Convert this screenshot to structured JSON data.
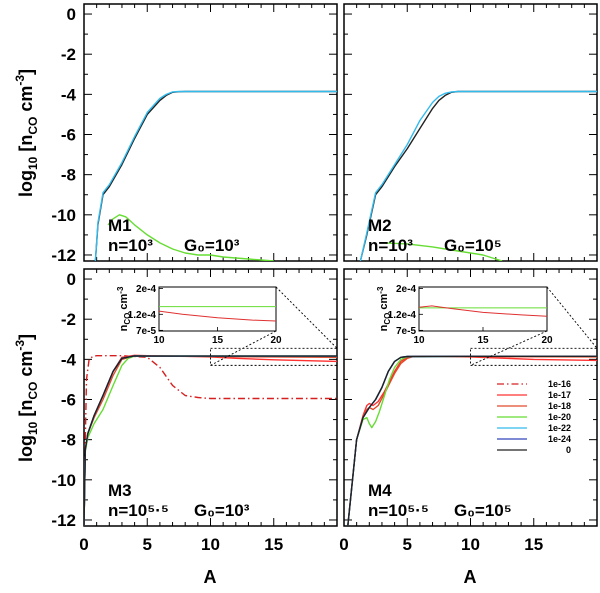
{
  "chart_data": {
    "type": "line",
    "xlabel": "A",
    "ylabel": "log10 [nCO cm-3]",
    "xlim": [
      0,
      20
    ],
    "ylim": [
      -12.3,
      0.5
    ],
    "x_ticks": [
      "0",
      "5",
      "10",
      "15"
    ],
    "y_ticks": [
      "0",
      "-2",
      "-4",
      "-6",
      "-8",
      "-10",
      "-12"
    ],
    "legend": {
      "placement": "lower-right of panel M4",
      "entries": [
        {
          "label": "1e-16",
          "color": "#d62020",
          "dash": "dashdot"
        },
        {
          "label": "1e-17",
          "color": "#ff3030",
          "dash": "solid"
        },
        {
          "label": "1e-18",
          "color": "#e04a2a",
          "dash": "solid"
        },
        {
          "label": "1e-20",
          "color": "#66dd33",
          "dash": "solid"
        },
        {
          "label": "1e-22",
          "color": "#33bbee",
          "dash": "solid"
        },
        {
          "label": "1e-24",
          "color": "#3344bb",
          "dash": "solid"
        },
        {
          "label": "0",
          "color": "#222222",
          "dash": "solid"
        }
      ]
    },
    "panels": [
      {
        "id": "M1",
        "model": "M1",
        "density": "n=10³",
        "field": "G₀=10³",
        "series": [
          {
            "name": "0",
            "color": "#222222",
            "dash": "solid",
            "x": [
              0.9,
              1.1,
              1.5,
              2.0,
              3.0,
              4.0,
              5.0,
              6.0,
              6.5,
              7.0,
              7.5,
              8.0,
              10.0,
              20.0
            ],
            "y": [
              -12.3,
              -10.5,
              -9.0,
              -8.6,
              -7.5,
              -6.2,
              -5.0,
              -4.3,
              -4.05,
              -3.9,
              -3.87,
              -3.86,
              -3.86,
              -3.86
            ]
          },
          {
            "name": "1e-22",
            "color": "#33bbee",
            "dash": "solid",
            "x": [
              0.9,
              1.1,
              1.5,
              2.0,
              3.0,
              4.0,
              5.0,
              6.0,
              6.5,
              7.0,
              7.5,
              8.0,
              10.0,
              20.0
            ],
            "y": [
              -12.3,
              -10.4,
              -8.9,
              -8.5,
              -7.4,
              -6.1,
              -4.9,
              -4.2,
              -4.0,
              -3.88,
              -3.86,
              -3.86,
              -3.86,
              -3.86
            ]
          },
          {
            "name": "1e-20",
            "color": "#66dd33",
            "dash": "solid",
            "x": [
              1.9,
              2.3,
              2.8,
              3.3,
              4.0,
              5.0,
              6.0,
              7.0,
              8.0,
              9.0,
              10.0,
              11.0,
              12.0,
              13.0,
              14.0,
              15.0
            ],
            "y": [
              -10.5,
              -10.2,
              -10.0,
              -10.1,
              -10.5,
              -11.0,
              -11.4,
              -11.7,
              -11.9,
              -12.0,
              -12.0,
              -12.1,
              -12.15,
              -12.2,
              -12.25,
              -12.3
            ]
          }
        ]
      },
      {
        "id": "M2",
        "model": "M2",
        "density": "n=10³",
        "field": "G₀=10⁵",
        "series": [
          {
            "name": "0",
            "color": "#222222",
            "dash": "solid",
            "x": [
              1.3,
              1.8,
              2.5,
              3.0,
              4.0,
              5.0,
              6.0,
              7.0,
              7.5,
              8.0,
              8.5,
              9.0,
              10.0,
              20.0
            ],
            "y": [
              -12.3,
              -11.0,
              -9.0,
              -8.6,
              -7.6,
              -6.7,
              -5.7,
              -4.7,
              -4.3,
              -4.05,
              -3.9,
              -3.86,
              -3.86,
              -3.86
            ]
          },
          {
            "name": "1e-22",
            "color": "#33bbee",
            "dash": "solid",
            "x": [
              1.3,
              1.8,
              2.5,
              3.0,
              4.0,
              5.0,
              6.0,
              7.0,
              7.5,
              8.0,
              8.5,
              9.0,
              10.0,
              20.0
            ],
            "y": [
              -12.3,
              -10.9,
              -8.9,
              -8.5,
              -7.5,
              -6.5,
              -5.3,
              -4.4,
              -4.1,
              -3.95,
              -3.88,
              -3.86,
              -3.86,
              -3.86
            ]
          },
          {
            "name": "1e-20",
            "color": "#66dd33",
            "dash": "solid",
            "x": [
              3.2,
              5.0,
              7.0,
              9.0,
              11.0,
              12.5
            ],
            "y": [
              -11.4,
              -11.45,
              -11.6,
              -11.8,
              -12.0,
              -12.3
            ]
          }
        ]
      },
      {
        "id": "M3",
        "model": "M3",
        "density": "n=10⁵·⁵",
        "field": "G₀=10³",
        "inset": {
          "ylabel": "nCO cm-3",
          "y_ticks": [
            "2e-4",
            "1.2e-4",
            "7e-5"
          ],
          "x_ticks": [
            "10",
            "15",
            "20"
          ]
        },
        "series": [
          {
            "name": "1e-16",
            "color": "#d62020",
            "dash": "dashdot",
            "x": [
              0.0,
              0.1,
              0.2,
              0.4,
              0.7,
              1.0,
              3.0,
              5.0,
              6.0,
              7.0,
              8.0,
              9.0,
              10.0,
              20.0
            ],
            "y": [
              -12.3,
              -8.0,
              -5.0,
              -4.0,
              -3.85,
              -3.82,
              -3.82,
              -3.9,
              -4.4,
              -5.3,
              -5.8,
              -5.9,
              -5.95,
              -5.95
            ]
          },
          {
            "name": "1e-17",
            "color": "#ff3030",
            "dash": "solid",
            "x": [
              0.0,
              0.1,
              0.3,
              0.8,
              1.5,
              2.3,
              3.0,
              4.0,
              5.0,
              7.0,
              9.0,
              10.0,
              12.0,
              15.0,
              20.0
            ],
            "y": [
              -12.3,
              -8.5,
              -7.7,
              -6.8,
              -5.8,
              -4.6,
              -3.9,
              -3.8,
              -3.82,
              -3.84,
              -3.86,
              -3.88,
              -3.95,
              -4.02,
              -4.1
            ]
          },
          {
            "name": "1e-18",
            "color": "#e04a2a",
            "dash": "solid",
            "x": [
              0.0,
              0.1,
              0.3,
              0.8,
              1.5,
              2.3,
              3.0,
              4.0,
              5.0,
              10.0,
              20.0
            ],
            "y": [
              -12.3,
              -8.5,
              -7.7,
              -6.9,
              -6.0,
              -4.8,
              -4.0,
              -3.82,
              -3.84,
              -3.86,
              -3.9
            ]
          },
          {
            "name": "1e-20",
            "color": "#66dd33",
            "dash": "solid",
            "x": [
              0.0,
              0.1,
              0.3,
              0.8,
              1.5,
              2.3,
              3.0,
              3.5,
              4.0,
              5.0,
              10.0,
              20.0
            ],
            "y": [
              -12.3,
              -8.6,
              -7.9,
              -7.2,
              -6.5,
              -5.3,
              -4.3,
              -3.95,
              -3.84,
              -3.84,
              -3.84,
              -3.84
            ]
          },
          {
            "name": "1e-22",
            "color": "#33bbee",
            "dash": "solid",
            "x": [
              0.0,
              0.1,
              0.3,
              0.8,
              1.5,
              2.3,
              3.0,
              4.0,
              5.0,
              10.0,
              20.0
            ],
            "y": [
              -12.3,
              -8.5,
              -7.7,
              -6.8,
              -5.8,
              -4.6,
              -3.95,
              -3.83,
              -3.84,
              -3.84,
              -3.84
            ]
          },
          {
            "name": "1e-24",
            "color": "#3344bb",
            "dash": "solid",
            "x": [
              0.0,
              0.1,
              0.3,
              0.8,
              1.5,
              2.3,
              3.0,
              4.0,
              5.0,
              10.0,
              20.0
            ],
            "y": [
              -12.3,
              -8.5,
              -7.7,
              -6.8,
              -5.8,
              -4.6,
              -3.95,
              -3.83,
              -3.84,
              -3.84,
              -3.84
            ]
          },
          {
            "name": "0",
            "color": "#222222",
            "dash": "solid",
            "x": [
              0.0,
              0.1,
              0.3,
              0.8,
              1.5,
              2.3,
              3.0,
              4.0,
              5.0,
              10.0,
              20.0
            ],
            "y": [
              -12.3,
              -8.5,
              -7.7,
              -6.8,
              -5.8,
              -4.6,
              -3.95,
              -3.83,
              -3.84,
              -3.84,
              -3.84
            ]
          }
        ]
      },
      {
        "id": "M4",
        "model": "M4",
        "density": "n=10⁵·⁵",
        "field": "G₀=10⁵",
        "inset": {
          "ylabel": "nCO cm-3",
          "y_ticks": [
            "2e-4",
            "1.2e-4",
            "7e-5"
          ],
          "x_ticks": [
            "10",
            "15",
            "20"
          ]
        },
        "series": [
          {
            "name": "1e-17",
            "color": "#ff3030",
            "dash": "solid",
            "x": [
              0.3,
              1.0,
              1.5,
              1.8,
              2.0,
              2.3,
              2.7,
              3.2,
              4.0,
              4.5,
              5.0,
              5.5,
              7.0,
              10.0,
              12.0,
              15.0,
              20.0
            ],
            "y": [
              -12.3,
              -8.0,
              -6.8,
              -6.3,
              -6.2,
              -6.3,
              -6.1,
              -5.6,
              -4.6,
              -4.1,
              -3.9,
              -3.85,
              -3.85,
              -3.88,
              -3.93,
              -4.0,
              -4.05
            ]
          },
          {
            "name": "1e-18",
            "color": "#e04a2a",
            "dash": "solid",
            "x": [
              0.3,
              1.0,
              1.5,
              1.8,
              2.0,
              2.3,
              2.7,
              3.2,
              4.0,
              4.5,
              5.0,
              5.5,
              7.0,
              10.0,
              20.0
            ],
            "y": [
              -12.3,
              -8.0,
              -6.9,
              -6.5,
              -6.4,
              -6.5,
              -6.3,
              -5.7,
              -4.7,
              -4.2,
              -3.95,
              -3.86,
              -3.85,
              -3.86,
              -3.88
            ]
          },
          {
            "name": "1e-20",
            "color": "#66dd33",
            "dash": "solid",
            "x": [
              0.3,
              1.0,
              1.5,
              1.8,
              2.0,
              2.2,
              2.5,
              2.8,
              3.2,
              3.6,
              4.0,
              4.5,
              5.0,
              10.0,
              20.0
            ],
            "y": [
              -12.3,
              -8.0,
              -7.0,
              -6.9,
              -7.2,
              -7.4,
              -7.1,
              -6.6,
              -5.8,
              -5.0,
              -4.4,
              -4.0,
              -3.87,
              -3.85,
              -3.85
            ]
          },
          {
            "name": "1e-22",
            "color": "#33bbee",
            "dash": "solid",
            "x": [
              0.3,
              1.0,
              1.5,
              2.0,
              2.5,
              3.0,
              3.5,
              4.0,
              4.5,
              5.0,
              10.0,
              20.0
            ],
            "y": [
              -12.3,
              -8.0,
              -6.9,
              -6.4,
              -6.0,
              -5.4,
              -4.6,
              -4.1,
              -3.9,
              -3.86,
              -3.85,
              -3.85
            ]
          },
          {
            "name": "1e-24",
            "color": "#3344bb",
            "dash": "solid",
            "x": [
              0.3,
              1.0,
              1.5,
              2.0,
              2.5,
              3.0,
              3.5,
              4.0,
              4.5,
              5.0,
              10.0,
              20.0
            ],
            "y": [
              -12.3,
              -8.0,
              -6.9,
              -6.4,
              -6.0,
              -5.4,
              -4.6,
              -4.1,
              -3.9,
              -3.86,
              -3.85,
              -3.85
            ]
          },
          {
            "name": "0",
            "color": "#222222",
            "dash": "solid",
            "x": [
              0.3,
              1.0,
              1.5,
              2.0,
              2.5,
              3.0,
              3.5,
              4.0,
              4.5,
              5.0,
              10.0,
              20.0
            ],
            "y": [
              -12.3,
              -8.0,
              -6.9,
              -6.4,
              -6.0,
              -5.4,
              -4.6,
              -4.1,
              -3.9,
              -3.86,
              -3.85,
              -3.85
            ]
          }
        ]
      }
    ]
  }
}
